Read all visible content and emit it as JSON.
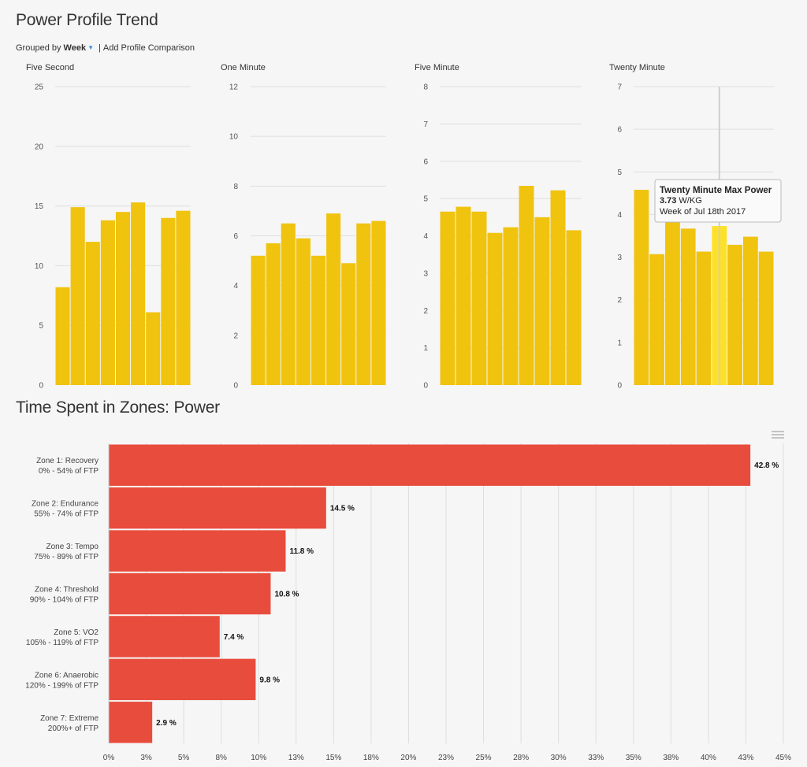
{
  "page": {
    "title": "Power Profile Trend",
    "grouped_by_label": "Grouped by",
    "grouped_by_value": "Week",
    "separator": "|",
    "add_comparison": "Add Profile Comparison",
    "zones_title": "Time Spent in Zones: Power"
  },
  "colors": {
    "bar": "#f0c30f",
    "bar_highlight": "#fde127",
    "zone_bar": "#e84c3d",
    "grid": "#dedede"
  },
  "chart_data": [
    {
      "type": "bar",
      "title": "Five Second",
      "values": [
        8.2,
        14.9,
        12.0,
        13.8,
        14.5,
        15.3,
        6.1,
        14.0,
        14.6
      ],
      "ylim": [
        0,
        25
      ],
      "yticks": [
        "0",
        "5",
        "10",
        "15",
        "20",
        "25"
      ],
      "ytick_values": [
        0,
        5,
        10,
        15,
        20,
        25
      ]
    },
    {
      "type": "bar",
      "title": "One Minute",
      "values": [
        5.2,
        5.7,
        6.5,
        5.9,
        5.2,
        6.9,
        4.9,
        6.5,
        6.6
      ],
      "ylim": [
        0,
        12
      ],
      "yticks": [
        "0",
        "2",
        "4",
        "6",
        "8",
        "10",
        "12"
      ],
      "ytick_values": [
        0,
        2,
        4,
        6,
        8,
        10,
        12
      ]
    },
    {
      "type": "bar",
      "title": "Five Minute",
      "values": [
        4.65,
        4.78,
        4.65,
        4.08,
        4.23,
        5.34,
        4.5,
        5.22,
        4.15
      ],
      "ylim": [
        0,
        8
      ],
      "yticks": [
        "0",
        "1",
        "2",
        "3",
        "4",
        "5",
        "6",
        "7",
        "8"
      ],
      "ytick_values": [
        0,
        1,
        2,
        3,
        4,
        5,
        6,
        7,
        8
      ]
    },
    {
      "type": "bar",
      "title": "Twenty Minute",
      "values": [
        4.58,
        3.07,
        3.85,
        3.67,
        3.13,
        3.73,
        3.29,
        3.48,
        3.13
      ],
      "ylim": [
        0,
        7
      ],
      "yticks": [
        "0",
        "1",
        "2",
        "3",
        "4",
        "5",
        "6",
        "7"
      ],
      "ytick_values": [
        0,
        1,
        2,
        3,
        4,
        5,
        6,
        7
      ],
      "highlight_index": 5,
      "tooltip": {
        "title": "Twenty Minute Max Power",
        "value": "3.73",
        "unit": "W/KG",
        "period": "Week of Jul 18th 2017"
      }
    },
    {
      "type": "bar",
      "orientation": "horizontal",
      "title": "Time Spent in Zones: Power",
      "categories": [
        [
          "Zone 1: Recovery",
          "0% - 54% of FTP"
        ],
        [
          "Zone 2: Endurance",
          "55% - 74% of FTP"
        ],
        [
          "Zone 3: Tempo",
          "75% - 89% of FTP"
        ],
        [
          "Zone 4: Threshold",
          "90% - 104% of FTP"
        ],
        [
          "Zone 5: VO2",
          "105% - 119% of FTP"
        ],
        [
          "Zone 6: Anaerobic",
          "120% - 199% of FTP"
        ],
        [
          "Zone 7: Extreme",
          "200%+ of FTP"
        ]
      ],
      "values": [
        42.8,
        14.5,
        11.8,
        10.8,
        7.4,
        9.8,
        2.9
      ],
      "labels": [
        "42.8 %",
        "14.5 %",
        "11.8 %",
        "10.8 %",
        "7.4 %",
        "9.8 %",
        "2.9 %"
      ],
      "xlim": [
        0,
        45
      ],
      "xticks": [
        "0%",
        "3%",
        "5%",
        "8%",
        "10%",
        "13%",
        "15%",
        "18%",
        "20%",
        "23%",
        "25%",
        "28%",
        "30%",
        "33%",
        "35%",
        "38%",
        "40%",
        "43%",
        "45%"
      ]
    }
  ]
}
